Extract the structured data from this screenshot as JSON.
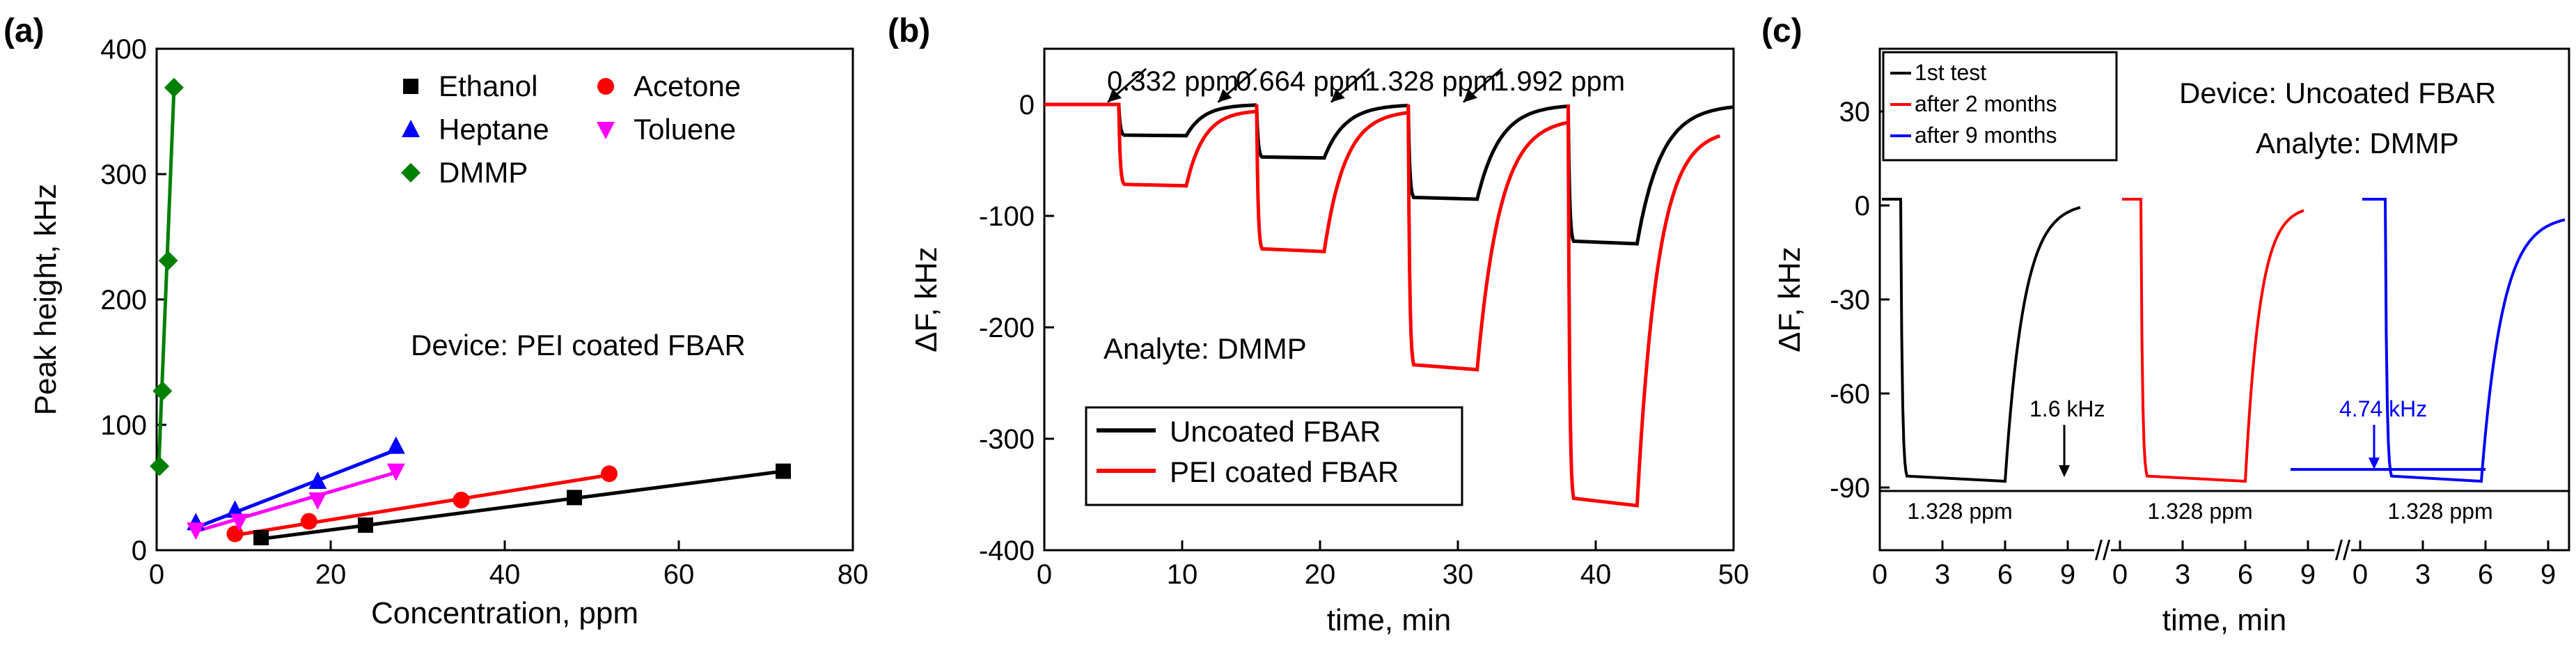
{
  "chart_data": [
    {
      "type": "scatter",
      "panel_label": "(a)",
      "xlabel": "Concentration, ppm",
      "ylabel": "Peak height, kHz",
      "xlim": [
        0,
        80
      ],
      "ylim": [
        0,
        400
      ],
      "xticks": [
        0,
        20,
        40,
        60,
        80
      ],
      "yticks": [
        0,
        100,
        200,
        300,
        400
      ],
      "annotation": "Device: PEI coated FBAR",
      "series": [
        {
          "name": "Ethanol",
          "color": "#000000",
          "marker": "square",
          "x": [
            12,
            24,
            48,
            72
          ],
          "y": [
            10,
            20,
            42,
            63
          ],
          "fit": {
            "x": [
              12,
              72
            ],
            "y": [
              9,
              63
            ]
          }
        },
        {
          "name": "Acetone",
          "color": "#ff0000",
          "marker": "circle",
          "x": [
            9,
            17.5,
            35,
            52
          ],
          "y": [
            13,
            23,
            40,
            61
          ],
          "fit": {
            "x": [
              9,
              52
            ],
            "y": [
              12,
              60
            ]
          }
        },
        {
          "name": "Heptane",
          "color": "#0000ff",
          "marker": "triangle-up",
          "x": [
            4.5,
            9,
            18.5,
            27.5
          ],
          "y": [
            22,
            32,
            55,
            83
          ],
          "fit": {
            "x": [
              4.5,
              27.5
            ],
            "y": [
              18,
              80
            ]
          }
        },
        {
          "name": "Toluene",
          "color": "#ff00ff",
          "marker": "triangle-down",
          "x": [
            4.5,
            9.5,
            18.5,
            27.5
          ],
          "y": [
            16,
            23,
            40,
            63
          ],
          "fit": {
            "x": [
              4.5,
              27.5
            ],
            "y": [
              15,
              62
            ]
          }
        },
        {
          "name": "DMMP",
          "color": "#008000",
          "marker": "diamond",
          "x": [
            0.332,
            0.664,
            1.328,
            1.992
          ],
          "y": [
            67,
            127,
            231,
            369
          ],
          "fit": {
            "x": [
              0.2,
              2.0
            ],
            "y": [
              60,
              369
            ]
          }
        }
      ]
    },
    {
      "type": "line",
      "panel_label": "(b)",
      "xlabel": "time, min",
      "ylabel": "ΔF, kHz",
      "xlim": [
        0,
        50
      ],
      "ylim": [
        -400,
        50
      ],
      "xticks": [
        0,
        10,
        20,
        30,
        40,
        50
      ],
      "yticks": [
        0,
        -100,
        -200,
        -300,
        -400
      ],
      "annotation": "Analyte: DMMP",
      "concentration_labels": [
        {
          "text": "0.332 ppm",
          "x": 5
        },
        {
          "text": "0.664 ppm",
          "x": 12.5
        },
        {
          "text": "1.328 ppm",
          "x": 20.8
        },
        {
          "text": "1.992 ppm",
          "x": 29.5
        }
      ],
      "arrow_targets": [
        {
          "from": [
            4.6,
            22
          ],
          "to": [
            4.6,
            2
          ]
        },
        {
          "from": [
            12.6,
            22
          ],
          "to": [
            12.6,
            2
          ]
        },
        {
          "from": [
            20.8,
            22
          ],
          "to": [
            20.8,
            2
          ]
        },
        {
          "from": [
            30.4,
            22
          ],
          "to": [
            30.4,
            2
          ]
        }
      ],
      "series": [
        {
          "name": "Uncoated FBAR",
          "color": "#000000",
          "segments": [
            {
              "t0": 0,
              "t1": 5.4,
              "base": 0
            },
            {
              "t0": 5.4,
              "t1": 10.3,
              "level": -28,
              "rec_to": 15.4,
              "rec_level": 0
            },
            {
              "t0": 15.4,
              "t1": 20.3,
              "level": -48,
              "rec_to": 26.4,
              "rec_level": 0
            },
            {
              "t0": 26.4,
              "t1": 31.4,
              "level": -85,
              "rec_to": 38.0,
              "rec_level": 0
            },
            {
              "t0": 38.0,
              "t1": 43.0,
              "level": -125,
              "rec_to": 50,
              "rec_level": 0
            }
          ]
        },
        {
          "name": "PEI coated FBAR",
          "color": "#ff0000",
          "segments": [
            {
              "t0": 0,
              "t1": 5.4,
              "base": 0
            },
            {
              "t0": 5.4,
              "t1": 10.3,
              "level": -73,
              "rec_to": 15.4,
              "rec_level": -5
            },
            {
              "t0": 15.4,
              "t1": 20.3,
              "level": -132,
              "rec_to": 26.4,
              "rec_level": -5
            },
            {
              "t0": 26.4,
              "t1": 31.4,
              "level": -238,
              "rec_to": 38.0,
              "rec_level": -12
            },
            {
              "t0": 38.0,
              "t1": 43.0,
              "level": -360,
              "rec_to": 49,
              "rec_level": -22
            }
          ]
        }
      ]
    },
    {
      "type": "line",
      "panel_label": "(c)",
      "xlabel": "time, min",
      "ylabel": "ΔF, kHz",
      "ylim": [
        -110,
        50
      ],
      "yticks": [
        30,
        0,
        -30,
        -60,
        -90
      ],
      "xtick_groups": [
        [
          0,
          3,
          6,
          9
        ],
        [
          0,
          3,
          6,
          9
        ],
        [
          0,
          3,
          6,
          9
        ]
      ],
      "axis_break_symbol": "//",
      "annotations": [
        "Device: Uncoated FBAR",
        "Analyte: DMMP"
      ],
      "concentration_labels": [
        "1.328 ppm",
        "1.328 ppm",
        "1.328 ppm"
      ],
      "drift_labels": [
        {
          "text": "1.6 kHz",
          "color": "#000000"
        },
        {
          "text": "4.74 kHz",
          "color": "#0000ff"
        }
      ],
      "series": [
        {
          "name": "1st test",
          "color": "#000000",
          "baseline_drift_kHz": 1.6
        },
        {
          "name": "after 2 months",
          "color": "#ff0000"
        },
        {
          "name": "after 9 months",
          "color": "#0000ff",
          "baseline_drift_kHz": 4.74
        }
      ]
    }
  ]
}
